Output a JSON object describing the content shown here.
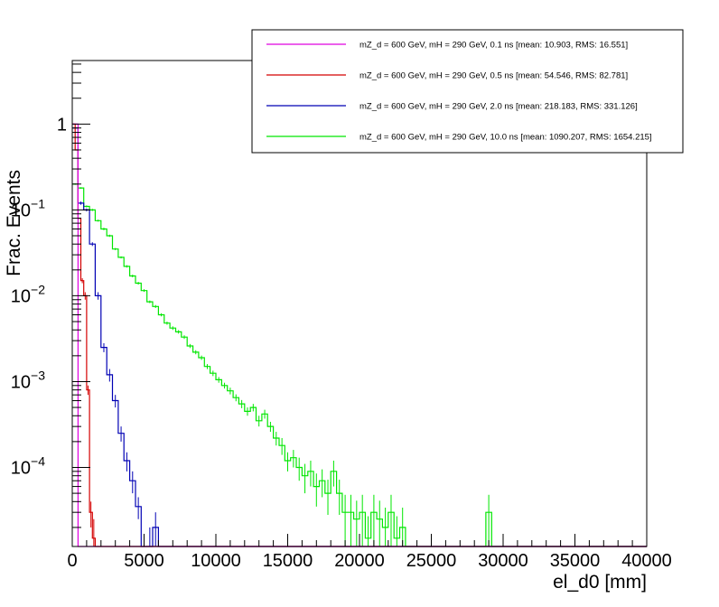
{
  "chart_data": {
    "type": "line",
    "xlabel": "el_d0 [mm]",
    "ylabel": "Frac. Events",
    "xlim": [
      0,
      40000
    ],
    "ylim": [
      1.2e-05,
      5.5
    ],
    "y_scale": "log",
    "grid": false,
    "legend_position": "top-right",
    "x_ticks": [
      "0",
      "5000",
      "10000",
      "15000",
      "20000",
      "25000",
      "30000",
      "35000",
      "40000"
    ],
    "y_ticks": [
      {
        "value": 1,
        "base": "1",
        "exp": ""
      },
      {
        "value": 0.1,
        "base": "10",
        "exp": "−1"
      },
      {
        "value": 0.01,
        "base": "10",
        "exp": "−2"
      },
      {
        "value": 0.001,
        "base": "10",
        "exp": "−3"
      },
      {
        "value": 0.0001,
        "base": "10",
        "exp": "−4"
      }
    ],
    "series": [
      {
        "name": "mZ_d = 600 GeV, mH = 290 GeV, 0.1 ns [mean: 10.903, RMS: 16.551]",
        "color": "#e000e0",
        "bin_width": 400,
        "x": [
          0
        ],
        "y": [
          1.0
        ],
        "err": [
          0
        ]
      },
      {
        "name": "mZ_d = 600 GeV, mH = 290 GeV, 0.5 ns [mean: 54.546, RMS: 82.781]",
        "color": "#d40000",
        "bin_width": 200,
        "x": [
          0,
          200,
          400,
          600,
          800,
          1000,
          1200,
          1400
        ],
        "y": [
          1.0,
          0.5,
          0.08,
          0.015,
          0.01,
          0.0008,
          3e-05,
          1.5e-05
        ],
        "err": [
          0,
          0,
          0,
          0.001,
          0.001,
          0.0001,
          1e-05,
          1e-05
        ]
      },
      {
        "name": "mZ_d = 600 GeV, mH = 290 GeV, 2.0 ns [mean: 218.183, RMS: 331.126]",
        "color": "#0000b4",
        "bin_width": 400,
        "x": [
          0,
          400,
          800,
          1200,
          1600,
          2000,
          2400,
          2800,
          3200,
          3600,
          4000,
          4400,
          5200,
          5600
        ],
        "y": [
          0.9,
          0.12,
          0.1,
          0.04,
          0.01,
          0.0025,
          0.0012,
          0.0006,
          0.00025,
          0.00012,
          7e-05,
          3.5e-05,
          1.2e-05,
          2e-05
        ],
        "err": [
          0.01,
          0.005,
          0.004,
          0.002,
          0.001,
          0.0003,
          0.0002,
          0.0001,
          5e-05,
          3e-05,
          2e-05,
          1e-05,
          8e-06,
          1e-05
        ]
      },
      {
        "name": "mZ_d = 600 GeV, mH = 290 GeV, 10.0 ns [mean: 1090.207, RMS: 1654.215]",
        "color": "#00e600",
        "bin_width": 400,
        "x": [
          0,
          400,
          800,
          1200,
          1600,
          2000,
          2400,
          2800,
          3200,
          3600,
          4000,
          4400,
          4800,
          5200,
          5600,
          6000,
          6400,
          6800,
          7200,
          7600,
          8000,
          8400,
          8800,
          9200,
          9600,
          10000,
          10400,
          10800,
          11200,
          11600,
          12000,
          12400,
          12800,
          13200,
          13600,
          14000,
          14400,
          14800,
          15200,
          15600,
          16000,
          16400,
          16800,
          17200,
          17600,
          18000,
          18400,
          18800,
          19200,
          19600,
          20000,
          20400,
          20800,
          21200,
          21600,
          22000,
          22400,
          22800,
          28800
        ],
        "y": [
          0.2,
          0.18,
          0.11,
          0.1,
          0.075,
          0.06,
          0.05,
          0.035,
          0.028,
          0.022,
          0.017,
          0.014,
          0.0115,
          0.0085,
          0.0075,
          0.006,
          0.0048,
          0.0042,
          0.0038,
          0.0033,
          0.0026,
          0.0022,
          0.0019,
          0.0015,
          0.00125,
          0.00105,
          0.0009,
          0.00078,
          0.00065,
          0.00055,
          0.00045,
          0.0005,
          0.00035,
          0.00042,
          0.0003,
          0.00022,
          0.00018,
          0.00012,
          0.00013,
          0.0001,
          8e-05,
          9e-05,
          6e-05,
          7e-05,
          5e-05,
          9e-05,
          5e-05,
          3e-05,
          3e-05,
          2.5e-05,
          3e-05,
          1.5e-05,
          3e-05,
          2.5e-05,
          2e-05,
          3e-05,
          1.5e-05,
          2e-05,
          3e-05
        ],
        "err": [
          0.004,
          0.004,
          0.003,
          0.003,
          0.002,
          0.002,
          0.0015,
          0.001,
          0.0008,
          0.0007,
          0.0006,
          0.0005,
          0.0004,
          0.0003,
          0.0003,
          0.00025,
          0.0002,
          0.0002,
          0.00018,
          0.00016,
          0.00014,
          0.00012,
          0.00011,
          0.0001,
          9e-05,
          8e-05,
          7e-05,
          7e-05,
          6e-05,
          6e-05,
          5e-05,
          5e-05,
          5e-05,
          5e-05,
          4e-05,
          4e-05,
          4e-05,
          3e-05,
          3e-05,
          3e-05,
          3e-05,
          3e-05,
          2.5e-05,
          2.5e-05,
          2.2e-05,
          3e-05,
          2.2e-05,
          1.8e-05,
          1.8e-05,
          1.6e-05,
          1.8e-05,
          1.2e-05,
          1.8e-05,
          1.6e-05,
          1.4e-05,
          1.8e-05,
          1.2e-05,
          1.4e-05,
          1.8e-05
        ]
      }
    ]
  }
}
